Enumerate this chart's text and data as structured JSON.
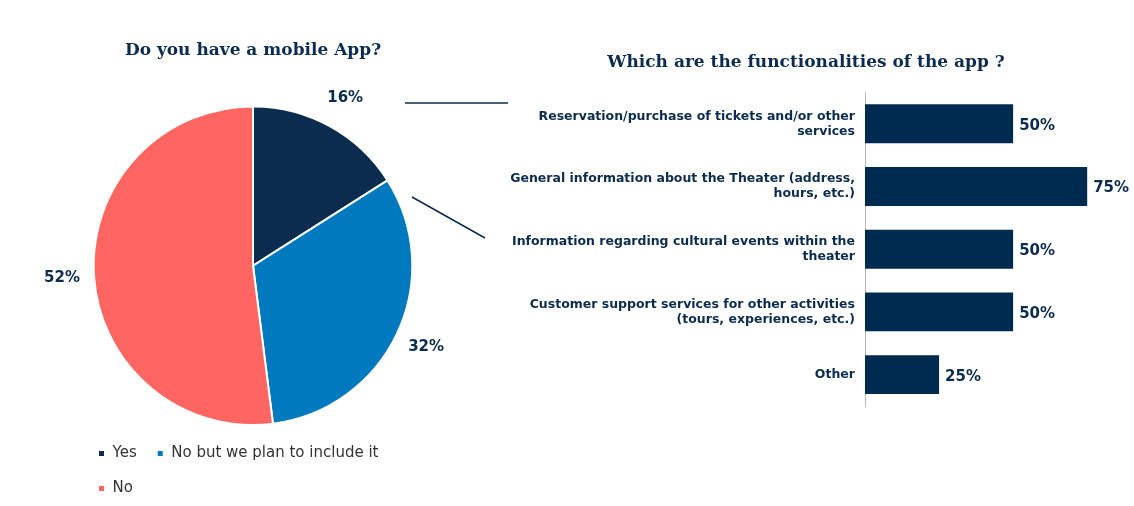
{
  "chart_data": [
    {
      "type": "pie",
      "title": "Do you have a mobile App?",
      "categories": [
        "Yes",
        "No but we plan to include it",
        "No"
      ],
      "values": [
        16,
        32,
        52
      ],
      "value_labels": [
        "16%",
        "32%",
        "52%"
      ],
      "colors": [
        "#0b2b4f",
        "#0079bf",
        "#ff6561"
      ],
      "legend": "bottom"
    },
    {
      "type": "bar",
      "orientation": "horizontal",
      "title": "Which are the functionalities of the app ?",
      "categories": [
        "Reservation/purchase of tickets and/or other services",
        "General information about the Theater (address, hours, etc.)",
        "Information regarding cultural events within the theater",
        "Customer support services for other activities (tours, experiences, etc.)",
        "Other"
      ],
      "values": [
        50,
        75,
        50,
        50,
        25
      ],
      "value_labels": [
        "50%",
        "75%",
        "50%",
        "50%",
        "25%"
      ],
      "color": "#002b51"
    }
  ]
}
